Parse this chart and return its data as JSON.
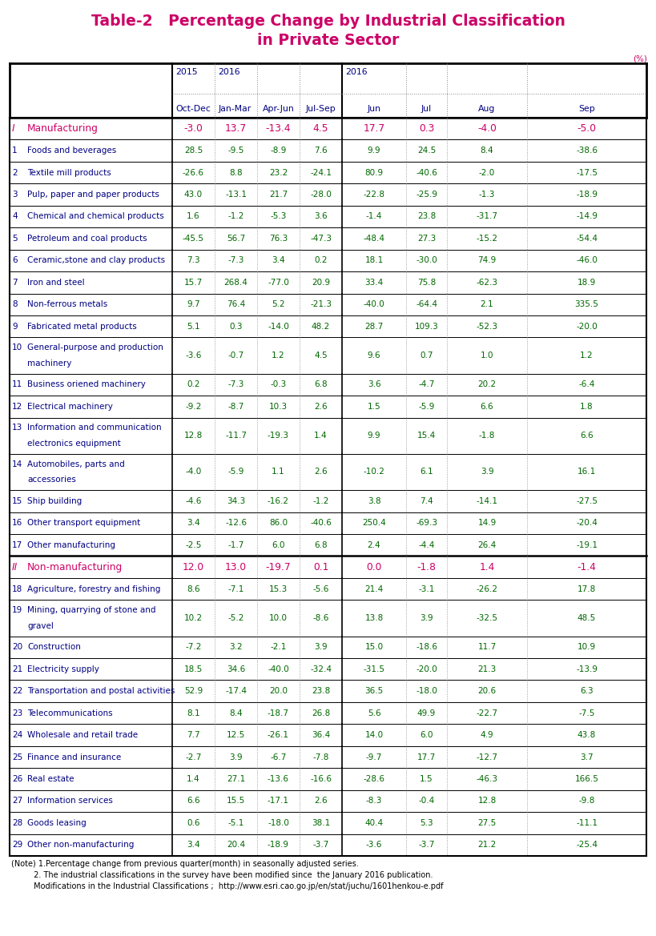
{
  "title_line1": "Table-2   Percentage Change by Industrial Classification",
  "title_line2": "in Private Sector",
  "title_color": "#cc0066",
  "percent_label": "(%)",
  "rows": [
    {
      "num": "I",
      "label": "Manufacturing",
      "values": [
        "-3.0",
        "13.7",
        "-13.4",
        "4.5",
        "17.7",
        "0.3",
        "-4.0",
        "-5.0"
      ],
      "type": "section"
    },
    {
      "num": "1",
      "label": "Foods and beverages",
      "values": [
        "28.5",
        "-9.5",
        "-8.9",
        "7.6",
        "9.9",
        "24.5",
        "8.4",
        "-38.6"
      ],
      "type": "sub"
    },
    {
      "num": "2",
      "label": "Textile mill products",
      "values": [
        "-26.6",
        "8.8",
        "23.2",
        "-24.1",
        "80.9",
        "-40.6",
        "-2.0",
        "-17.5"
      ],
      "type": "sub"
    },
    {
      "num": "3",
      "label": "Pulp, paper and paper products",
      "values": [
        "43.0",
        "-13.1",
        "21.7",
        "-28.0",
        "-22.8",
        "-25.9",
        "-1.3",
        "-18.9"
      ],
      "type": "sub"
    },
    {
      "num": "4",
      "label": "Chemical and chemical products",
      "values": [
        "1.6",
        "-1.2",
        "-5.3",
        "3.6",
        "-1.4",
        "23.8",
        "-31.7",
        "-14.9"
      ],
      "type": "sub"
    },
    {
      "num": "5",
      "label": "Petroleum and coal products",
      "values": [
        "-45.5",
        "56.7",
        "76.3",
        "-47.3",
        "-48.4",
        "27.3",
        "-15.2",
        "-54.4"
      ],
      "type": "sub"
    },
    {
      "num": "6",
      "label": "Ceramic,stone and clay products",
      "values": [
        "7.3",
        "-7.3",
        "3.4",
        "0.2",
        "18.1",
        "-30.0",
        "74.9",
        "-46.0"
      ],
      "type": "sub"
    },
    {
      "num": "7",
      "label": "Iron and steel",
      "values": [
        "15.7",
        "268.4",
        "-77.0",
        "20.9",
        "33.4",
        "75.8",
        "-62.3",
        "18.9"
      ],
      "type": "sub"
    },
    {
      "num": "8",
      "label": "Non-ferrous metals",
      "values": [
        "9.7",
        "76.4",
        "5.2",
        "-21.3",
        "-40.0",
        "-64.4",
        "2.1",
        "335.5"
      ],
      "type": "sub"
    },
    {
      "num": "9",
      "label": "Fabricated metal products",
      "values": [
        "5.1",
        "0.3",
        "-14.0",
        "48.2",
        "28.7",
        "109.3",
        "-52.3",
        "-20.0"
      ],
      "type": "sub"
    },
    {
      "num": "10",
      "label": "General-purpose and production\nmachinery",
      "values": [
        "-3.6",
        "-0.7",
        "1.2",
        "4.5",
        "9.6",
        "0.7",
        "1.0",
        "1.2"
      ],
      "type": "sub2"
    },
    {
      "num": "11",
      "label": "Business oriened machinery",
      "values": [
        "0.2",
        "-7.3",
        "-0.3",
        "6.8",
        "3.6",
        "-4.7",
        "20.2",
        "-6.4"
      ],
      "type": "sub"
    },
    {
      "num": "12",
      "label": "Electrical machinery",
      "values": [
        "-9.2",
        "-8.7",
        "10.3",
        "2.6",
        "1.5",
        "-5.9",
        "6.6",
        "1.8"
      ],
      "type": "sub"
    },
    {
      "num": "13",
      "label": "Information and communication\nelectronics equipment",
      "values": [
        "12.8",
        "-11.7",
        "-19.3",
        "1.4",
        "9.9",
        "15.4",
        "-1.8",
        "6.6"
      ],
      "type": "sub2"
    },
    {
      "num": "14",
      "label": "Automobiles, parts and\naccessories",
      "values": [
        "-4.0",
        "-5.9",
        "1.1",
        "2.6",
        "-10.2",
        "6.1",
        "3.9",
        "16.1"
      ],
      "type": "sub2"
    },
    {
      "num": "15",
      "label": "Ship building",
      "values": [
        "-4.6",
        "34.3",
        "-16.2",
        "-1.2",
        "3.8",
        "7.4",
        "-14.1",
        "-27.5"
      ],
      "type": "sub"
    },
    {
      "num": "16",
      "label": "Other transport equipment",
      "values": [
        "3.4",
        "-12.6",
        "86.0",
        "-40.6",
        "250.4",
        "-69.3",
        "14.9",
        "-20.4"
      ],
      "type": "sub"
    },
    {
      "num": "17",
      "label": "Other manufacturing",
      "values": [
        "-2.5",
        "-1.7",
        "6.0",
        "6.8",
        "2.4",
        "-4.4",
        "26.4",
        "-19.1"
      ],
      "type": "sub"
    },
    {
      "num": "II",
      "label": "Non-manufacturing",
      "values": [
        "12.0",
        "13.0",
        "-19.7",
        "0.1",
        "0.0",
        "-1.8",
        "1.4",
        "-1.4"
      ],
      "type": "section"
    },
    {
      "num": "18",
      "label": "Agriculture, forestry and fishing",
      "values": [
        "8.6",
        "-7.1",
        "15.3",
        "-5.6",
        "21.4",
        "-3.1",
        "-26.2",
        "17.8"
      ],
      "type": "sub"
    },
    {
      "num": "19",
      "label": "Mining, quarrying of stone and\ngravel",
      "values": [
        "10.2",
        "-5.2",
        "10.0",
        "-8.6",
        "13.8",
        "3.9",
        "-32.5",
        "48.5"
      ],
      "type": "sub2"
    },
    {
      "num": "20",
      "label": "Construction",
      "values": [
        "-7.2",
        "3.2",
        "-2.1",
        "3.9",
        "15.0",
        "-18.6",
        "11.7",
        "10.9"
      ],
      "type": "sub"
    },
    {
      "num": "21",
      "label": "Electricity supply",
      "values": [
        "18.5",
        "34.6",
        "-40.0",
        "-32.4",
        "-31.5",
        "-20.0",
        "21.3",
        "-13.9"
      ],
      "type": "sub"
    },
    {
      "num": "22",
      "label": "Transportation and postal activities",
      "values": [
        "52.9",
        "-17.4",
        "20.0",
        "23.8",
        "36.5",
        "-18.0",
        "20.6",
        "6.3"
      ],
      "type": "sub"
    },
    {
      "num": "23",
      "label": "Telecommunications",
      "values": [
        "8.1",
        "8.4",
        "-18.7",
        "26.8",
        "5.6",
        "49.9",
        "-22.7",
        "-7.5"
      ],
      "type": "sub"
    },
    {
      "num": "24",
      "label": "Wholesale and retail trade",
      "values": [
        "7.7",
        "12.5",
        "-26.1",
        "36.4",
        "14.0",
        "6.0",
        "4.9",
        "43.8"
      ],
      "type": "sub"
    },
    {
      "num": "25",
      "label": "Finance and insurance",
      "values": [
        "-2.7",
        "3.9",
        "-6.7",
        "-7.8",
        "-9.7",
        "17.7",
        "-12.7",
        "3.7"
      ],
      "type": "sub"
    },
    {
      "num": "26",
      "label": "Real estate",
      "values": [
        "1.4",
        "27.1",
        "-13.6",
        "-16.6",
        "-28.6",
        "1.5",
        "-46.3",
        "166.5"
      ],
      "type": "sub"
    },
    {
      "num": "27",
      "label": "Information services",
      "values": [
        "6.6",
        "15.5",
        "-17.1",
        "2.6",
        "-8.3",
        "-0.4",
        "12.8",
        "-9.8"
      ],
      "type": "sub"
    },
    {
      "num": "28",
      "label": "Goods leasing",
      "values": [
        "0.6",
        "-5.1",
        "-18.0",
        "38.1",
        "40.4",
        "5.3",
        "27.5",
        "-11.1"
      ],
      "type": "sub"
    },
    {
      "num": "29",
      "label": "Other non-manufacturing",
      "values": [
        "3.4",
        "20.4",
        "-18.9",
        "-3.7",
        "-3.6",
        "-3.7",
        "21.2",
        "-25.4"
      ],
      "type": "sub"
    }
  ],
  "notes": [
    "(Note) 1.Percentage change from previous quarter(month) in seasonally adjusted series.",
    "         2. The industrial classifications in the survey have been modified since  the January 2016 publication.",
    "         Modifications in the Industrial Classifications ;  http://www.esri.cao.go.jp/en/stat/juchu/1601henkou-e.pdf"
  ],
  "section_color": "#cc0066",
  "data_color": "#006600",
  "navy": "#000080",
  "black": "#000000",
  "bg_color": "#ffffff"
}
